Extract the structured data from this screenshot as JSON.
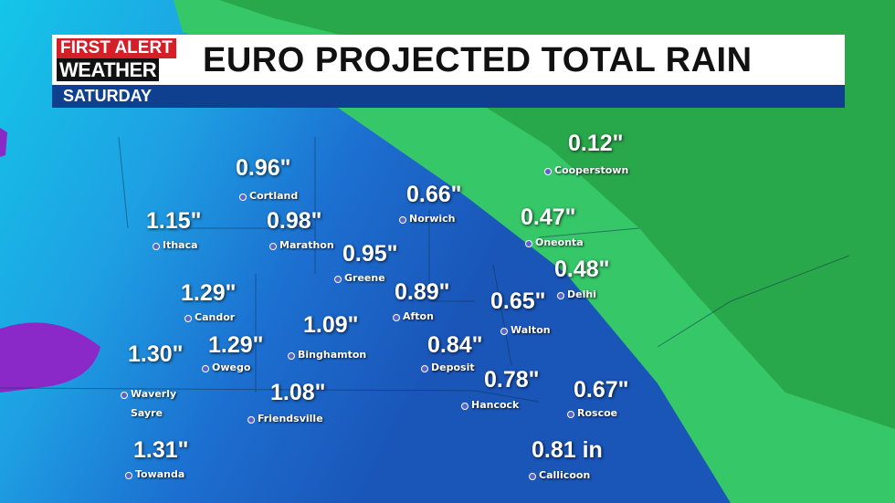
{
  "header": {
    "logo": {
      "line1": "FIRST ALERT",
      "line2": "WEATHER"
    },
    "title": "EURO PROJECTED TOTAL RAIN",
    "subtitle": "SATURDAY"
  },
  "locations": [
    {
      "names": [
        "Cooperstown"
      ],
      "amount": "0.12\""
    },
    {
      "names": [
        "Cortland"
      ],
      "amount": "0.96\""
    },
    {
      "names": [
        "Norwich"
      ],
      "amount": "0.66\""
    },
    {
      "names": [
        "Ithaca"
      ],
      "amount": "1.15\""
    },
    {
      "names": [
        "Marathon"
      ],
      "amount": "0.98\""
    },
    {
      "names": [
        "Oneonta"
      ],
      "amount": "0.47\""
    },
    {
      "names": [
        "Greene"
      ],
      "amount": "0.95\""
    },
    {
      "names": [
        "Delhi"
      ],
      "amount": "0.48\""
    },
    {
      "names": [
        "Candor"
      ],
      "amount": "1.29\""
    },
    {
      "names": [
        "Afton"
      ],
      "amount": "0.89\""
    },
    {
      "names": [
        "Walton"
      ],
      "amount": "0.65\""
    },
    {
      "names": [
        "Binghamton"
      ],
      "amount": "1.09\""
    },
    {
      "names": [
        "Owego"
      ],
      "amount": "1.29\""
    },
    {
      "names": [
        "Waverly",
        "Sayre"
      ],
      "amount": "1.30\""
    },
    {
      "names": [
        "Deposit"
      ],
      "amount": "0.84\""
    },
    {
      "names": [
        "Hancock"
      ],
      "amount": "0.78\""
    },
    {
      "names": [
        "Roscoe"
      ],
      "amount": "0.67\""
    },
    {
      "names": [
        "Friendsville"
      ],
      "amount": "1.08\""
    },
    {
      "names": [
        "Towanda"
      ],
      "amount": "1.31\""
    },
    {
      "names": [
        "Callicoon"
      ],
      "amount": "0.81 in"
    }
  ]
}
